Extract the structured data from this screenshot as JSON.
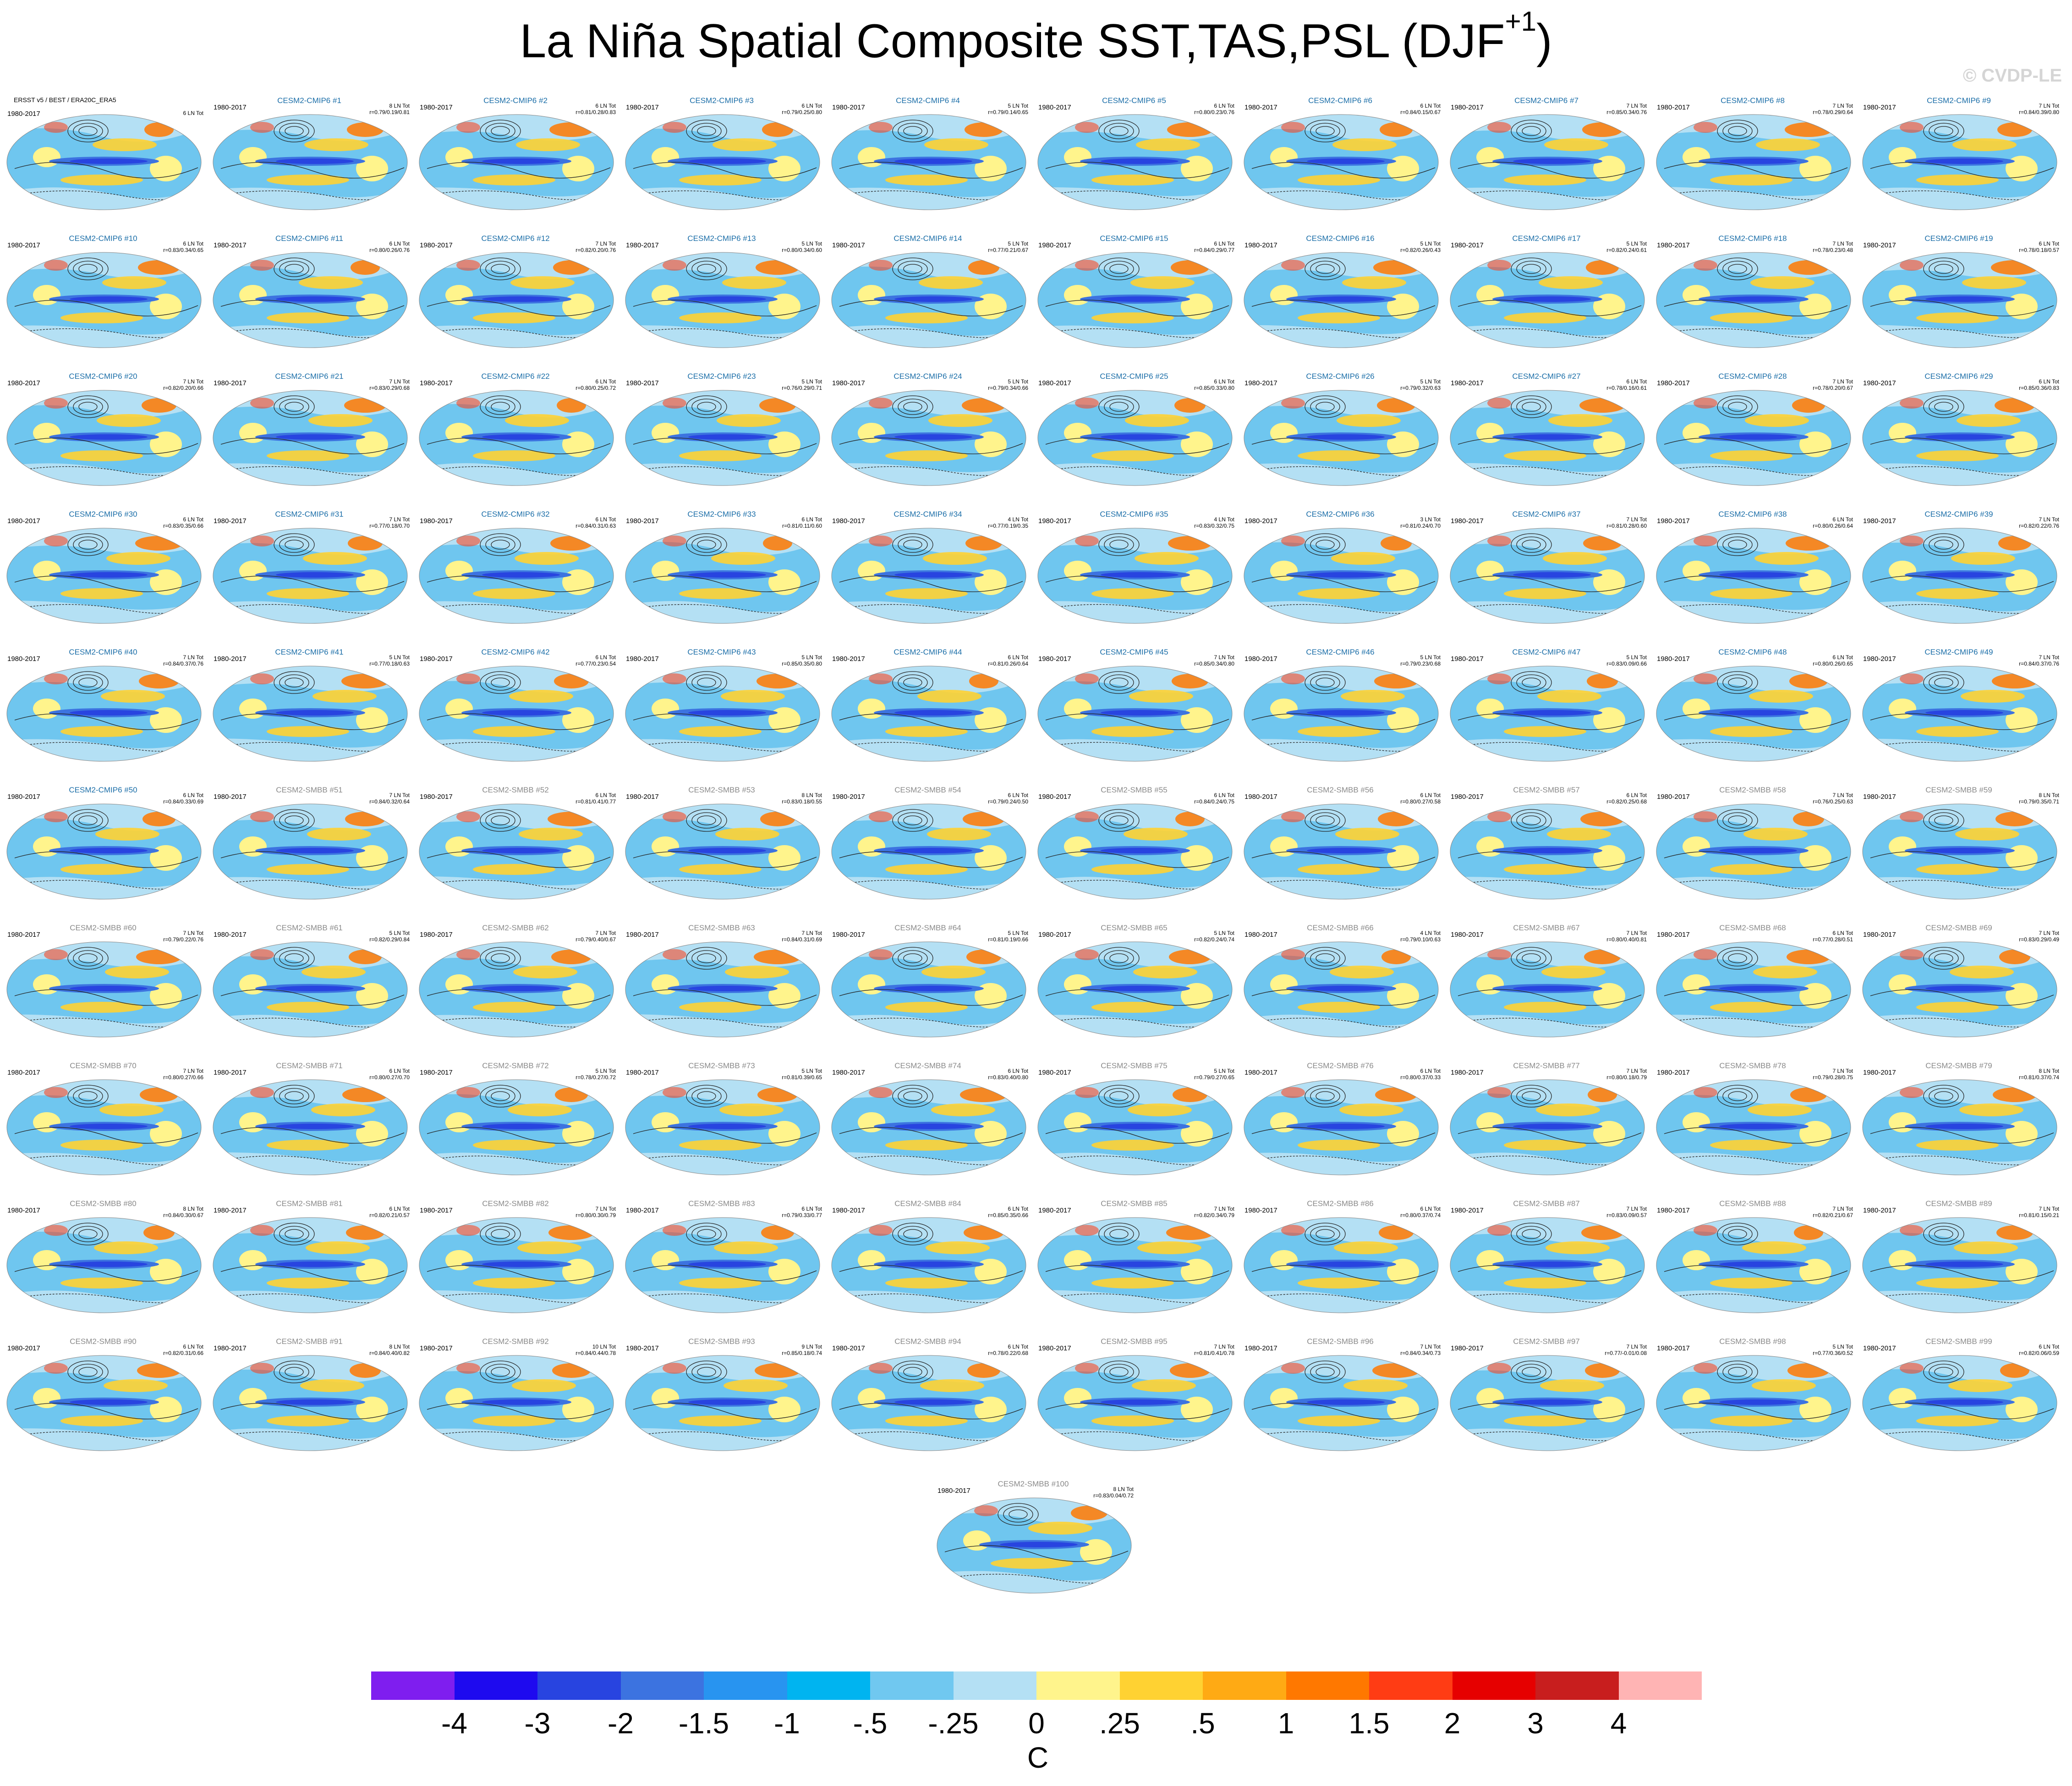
{
  "title": {
    "main": "La Niña Spatial Composite SST,TAS,PSL (DJF",
    "superscript": "+1",
    "close": ")"
  },
  "watermark": "© CVDP-LE",
  "panels": [
    {
      "model": "ERSST v5 / BEST / ERA20C_ERA5",
      "period": "1980-2017",
      "stat1": "6 LN Tot",
      "stat2": ""
    },
    {
      "model": "CESM2-CMIP6 #1",
      "period": "1980-2017",
      "stat1": "8 LN Tot",
      "stat2": "r=0.79/0.19/0.81"
    },
    {
      "model": "CESM2-CMIP6 #2",
      "period": "1980-2017",
      "stat1": "6 LN Tot",
      "stat2": "r=0.81/0.28/0.83"
    },
    {
      "model": "CESM2-CMIP6 #3",
      "period": "1980-2017",
      "stat1": "6 LN Tot",
      "stat2": "r=0.79/0.25/0.80"
    },
    {
      "model": "CESM2-CMIP6 #4",
      "period": "1980-2017",
      "stat1": "5 LN Tot",
      "stat2": "r=0.79/0.14/0.65"
    },
    {
      "model": "CESM2-CMIP6 #5",
      "period": "1980-2017",
      "stat1": "6 LN Tot",
      "stat2": "r=0.80/0.23/0.76"
    },
    {
      "model": "CESM2-CMIP6 #6",
      "period": "1980-2017",
      "stat1": "6 LN Tot",
      "stat2": "r=0.84/0.15/0.67"
    },
    {
      "model": "CESM2-CMIP6 #7",
      "period": "1980-2017",
      "stat1": "7 LN Tot",
      "stat2": "r=0.85/0.34/0.76"
    },
    {
      "model": "CESM2-CMIP6 #8",
      "period": "1980-2017",
      "stat1": "7 LN Tot",
      "stat2": "r=0.78/0.29/0.64"
    },
    {
      "model": "CESM2-CMIP6 #9",
      "period": "1980-2017",
      "stat1": "7 LN Tot",
      "stat2": "r=0.84/0.39/0.80"
    },
    {
      "model": "CESM2-CMIP6 #10",
      "period": "1980-2017",
      "stat1": "6 LN Tot",
      "stat2": "r=0.83/0.34/0.65"
    },
    {
      "model": "CESM2-CMIP6 #11",
      "period": "1980-2017",
      "stat1": "6 LN Tot",
      "stat2": "r=0.80/0.26/0.76"
    },
    {
      "model": "CESM2-CMIP6 #12",
      "period": "1980-2017",
      "stat1": "7 LN Tot",
      "stat2": "r=0.82/0.20/0.76"
    },
    {
      "model": "CESM2-CMIP6 #13",
      "period": "1980-2017",
      "stat1": "5 LN Tot",
      "stat2": "r=0.80/0.34/0.60"
    },
    {
      "model": "CESM2-CMIP6 #14",
      "period": "1980-2017",
      "stat1": "5 LN Tot",
      "stat2": "r=0.77/0.21/0.67"
    },
    {
      "model": "CESM2-CMIP6 #15",
      "period": "1980-2017",
      "stat1": "6 LN Tot",
      "stat2": "r=0.84/0.29/0.77"
    },
    {
      "model": "CESM2-CMIP6 #16",
      "period": "1980-2017",
      "stat1": "5 LN Tot",
      "stat2": "r=0.82/0.26/0.43"
    },
    {
      "model": "CESM2-CMIP6 #17",
      "period": "1980-2017",
      "stat1": "5 LN Tot",
      "stat2": "r=0.82/0.24/0.61"
    },
    {
      "model": "CESM2-CMIP6 #18",
      "period": "1980-2017",
      "stat1": "7 LN Tot",
      "stat2": "r=0.78/0.23/0.48"
    },
    {
      "model": "CESM2-CMIP6 #19",
      "period": "1980-2017",
      "stat1": "6 LN Tot",
      "stat2": "r=0.78/0.18/0.57"
    },
    {
      "model": "CESM2-CMIP6 #20",
      "period": "1980-2017",
      "stat1": "7 LN Tot",
      "stat2": "r=0.82/0.20/0.66"
    },
    {
      "model": "CESM2-CMIP6 #21",
      "period": "1980-2017",
      "stat1": "7 LN Tot",
      "stat2": "r=0.83/0.29/0.68"
    },
    {
      "model": "CESM2-CMIP6 #22",
      "period": "1980-2017",
      "stat1": "6 LN Tot",
      "stat2": "r=0.80/0.25/0.72"
    },
    {
      "model": "CESM2-CMIP6 #23",
      "period": "1980-2017",
      "stat1": "5 LN Tot",
      "stat2": "r=0.76/0.29/0.71"
    },
    {
      "model": "CESM2-CMIP6 #24",
      "period": "1980-2017",
      "stat1": "5 LN Tot",
      "stat2": "r=0.79/0.34/0.66"
    },
    {
      "model": "CESM2-CMIP6 #25",
      "period": "1980-2017",
      "stat1": "6 LN Tot",
      "stat2": "r=0.85/0.33/0.80"
    },
    {
      "model": "CESM2-CMIP6 #26",
      "period": "1980-2017",
      "stat1": "5 LN Tot",
      "stat2": "r=0.79/0.32/0.63"
    },
    {
      "model": "CESM2-CMIP6 #27",
      "period": "1980-2017",
      "stat1": "6 LN Tot",
      "stat2": "r=0.78/0.16/0.61"
    },
    {
      "model": "CESM2-CMIP6 #28",
      "period": "1980-2017",
      "stat1": "7 LN Tot",
      "stat2": "r=0.78/0.20/0.67"
    },
    {
      "model": "CESM2-CMIP6 #29",
      "period": "1980-2017",
      "stat1": "6 LN Tot",
      "stat2": "r=0.85/0.36/0.83"
    },
    {
      "model": "CESM2-CMIP6 #30",
      "period": "1980-2017",
      "stat1": "6 LN Tot",
      "stat2": "r=0.83/0.35/0.66"
    },
    {
      "model": "CESM2-CMIP6 #31",
      "period": "1980-2017",
      "stat1": "7 LN Tot",
      "stat2": "r=0.77/0.18/0.70"
    },
    {
      "model": "CESM2-CMIP6 #32",
      "period": "1980-2017",
      "stat1": "6 LN Tot",
      "stat2": "r=0.84/0.31/0.63"
    },
    {
      "model": "CESM2-CMIP6 #33",
      "period": "1980-2017",
      "stat1": "6 LN Tot",
      "stat2": "r=0.81/0.11/0.60"
    },
    {
      "model": "CESM2-CMIP6 #34",
      "period": "1980-2017",
      "stat1": "4 LN Tot",
      "stat2": "r=0.77/0.19/0.35"
    },
    {
      "model": "CESM2-CMIP6 #35",
      "period": "1980-2017",
      "stat1": "4 LN Tot",
      "stat2": "r=0.83/0.32/0.75"
    },
    {
      "model": "CESM2-CMIP6 #36",
      "period": "1980-2017",
      "stat1": "3 LN Tot",
      "stat2": "r=0.81/0.24/0.70"
    },
    {
      "model": "CESM2-CMIP6 #37",
      "period": "1980-2017",
      "stat1": "7 LN Tot",
      "stat2": "r=0.81/0.28/0.60"
    },
    {
      "model": "CESM2-CMIP6 #38",
      "period": "1980-2017",
      "stat1": "6 LN Tot",
      "stat2": "r=0.80/0.26/0.64"
    },
    {
      "model": "CESM2-CMIP6 #39",
      "period": "1980-2017",
      "stat1": "7 LN Tot",
      "stat2": "r=0.82/0.22/0.76"
    },
    {
      "model": "CESM2-CMIP6 #40",
      "period": "1980-2017",
      "stat1": "7 LN Tot",
      "stat2": "r=0.84/0.37/0.76"
    },
    {
      "model": "CESM2-CMIP6 #41",
      "period": "1980-2017",
      "stat1": "5 LN Tot",
      "stat2": "r=0.77/0.18/0.63"
    },
    {
      "model": "CESM2-CMIP6 #42",
      "period": "1980-2017",
      "stat1": "6 LN Tot",
      "stat2": "r=0.77/0.23/0.54"
    },
    {
      "model": "CESM2-CMIP6 #43",
      "period": "1980-2017",
      "stat1": "5 LN Tot",
      "stat2": "r=0.85/0.35/0.80"
    },
    {
      "model": "CESM2-CMIP6 #44",
      "period": "1980-2017",
      "stat1": "6 LN Tot",
      "stat2": "r=0.81/0.26/0.64"
    },
    {
      "model": "CESM2-CMIP6 #45",
      "period": "1980-2017",
      "stat1": "7 LN Tot",
      "stat2": "r=0.85/0.34/0.80"
    },
    {
      "model": "CESM2-CMIP6 #46",
      "period": "1980-2017",
      "stat1": "5 LN Tot",
      "stat2": "r=0.79/0.23/0.68"
    },
    {
      "model": "CESM2-CMIP6 #47",
      "period": "1980-2017",
      "stat1": "5 LN Tot",
      "stat2": "r=0.83/0.09/0.66"
    },
    {
      "model": "CESM2-CMIP6 #48",
      "period": "1980-2017",
      "stat1": "6 LN Tot",
      "stat2": "r=0.80/0.26/0.65"
    },
    {
      "model": "CESM2-CMIP6 #49",
      "period": "1980-2017",
      "stat1": "7 LN Tot",
      "stat2": "r=0.84/0.37/0.76"
    },
    {
      "model": "CESM2-CMIP6 #50",
      "period": "1980-2017",
      "stat1": "6 LN Tot",
      "stat2": "r=0.84/0.33/0.69"
    },
    {
      "model": "CESM2-SMBB #51",
      "period": "1980-2017",
      "stat1": "7 LN Tot",
      "stat2": "r=0.84/0.32/0.64"
    },
    {
      "model": "CESM2-SMBB #52",
      "period": "1980-2017",
      "stat1": "6 LN Tot",
      "stat2": "r=0.81/0.41/0.77"
    },
    {
      "model": "CESM2-SMBB #53",
      "period": "1980-2017",
      "stat1": "8 LN Tot",
      "stat2": "r=0.83/0.18/0.55"
    },
    {
      "model": "CESM2-SMBB #54",
      "period": "1980-2017",
      "stat1": "6 LN Tot",
      "stat2": "r=0.79/0.24/0.50"
    },
    {
      "model": "CESM2-SMBB #55",
      "period": "1980-2017",
      "stat1": "6 LN Tot",
      "stat2": "r=0.84/0.24/0.75"
    },
    {
      "model": "CESM2-SMBB #56",
      "period": "1980-2017",
      "stat1": "6 LN Tot",
      "stat2": "r=0.80/0.27/0.58"
    },
    {
      "model": "CESM2-SMBB #57",
      "period": "1980-2017",
      "stat1": "6 LN Tot",
      "stat2": "r=0.82/0.25/0.68"
    },
    {
      "model": "CESM2-SMBB #58",
      "period": "1980-2017",
      "stat1": "7 LN Tot",
      "stat2": "r=0.76/0.25/0.63"
    },
    {
      "model": "CESM2-SMBB #59",
      "period": "1980-2017",
      "stat1": "8 LN Tot",
      "stat2": "r=0.79/0.35/0.71"
    },
    {
      "model": "CESM2-SMBB #60",
      "period": "1980-2017",
      "stat1": "7 LN Tot",
      "stat2": "r=0.79/0.22/0.76"
    },
    {
      "model": "CESM2-SMBB #61",
      "period": "1980-2017",
      "stat1": "5 LN Tot",
      "stat2": "r=0.82/0.29/0.84"
    },
    {
      "model": "CESM2-SMBB #62",
      "period": "1980-2017",
      "stat1": "7 LN Tot",
      "stat2": "r=0.79/0.40/0.67"
    },
    {
      "model": "CESM2-SMBB #63",
      "period": "1980-2017",
      "stat1": "7 LN Tot",
      "stat2": "r=0.84/0.31/0.69"
    },
    {
      "model": "CESM2-SMBB #64",
      "period": "1980-2017",
      "stat1": "5 LN Tot",
      "stat2": "r=0.81/0.19/0.66"
    },
    {
      "model": "CESM2-SMBB #65",
      "period": "1980-2017",
      "stat1": "5 LN Tot",
      "stat2": "r=0.82/0.24/0.74"
    },
    {
      "model": "CESM2-SMBB #66",
      "period": "1980-2017",
      "stat1": "4 LN Tot",
      "stat2": "r=0.79/0.10/0.63"
    },
    {
      "model": "CESM2-SMBB #67",
      "period": "1980-2017",
      "stat1": "7 LN Tot",
      "stat2": "r=0.80/0.40/0.81"
    },
    {
      "model": "CESM2-SMBB #68",
      "period": "1980-2017",
      "stat1": "6 LN Tot",
      "stat2": "r=0.77/0.28/0.51"
    },
    {
      "model": "CESM2-SMBB #69",
      "period": "1980-2017",
      "stat1": "7 LN Tot",
      "stat2": "r=0.83/0.29/0.49"
    },
    {
      "model": "CESM2-SMBB #70",
      "period": "1980-2017",
      "stat1": "7 LN Tot",
      "stat2": "r=0.80/0.27/0.66"
    },
    {
      "model": "CESM2-SMBB #71",
      "period": "1980-2017",
      "stat1": "6 LN Tot",
      "stat2": "r=0.80/0.27/0.70"
    },
    {
      "model": "CESM2-SMBB #72",
      "period": "1980-2017",
      "stat1": "5 LN Tot",
      "stat2": "r=0.78/0.27/0.72"
    },
    {
      "model": "CESM2-SMBB #73",
      "period": "1980-2017",
      "stat1": "5 LN Tot",
      "stat2": "r=0.81/0.39/0.65"
    },
    {
      "model": "CESM2-SMBB #74",
      "period": "1980-2017",
      "stat1": "6 LN Tot",
      "stat2": "r=0.83/0.40/0.80"
    },
    {
      "model": "CESM2-SMBB #75",
      "period": "1980-2017",
      "stat1": "5 LN Tot",
      "stat2": "r=0.79/0.27/0.65"
    },
    {
      "model": "CESM2-SMBB #76",
      "period": "1980-2017",
      "stat1": "6 LN Tot",
      "stat2": "r=0.80/0.37/0.33"
    },
    {
      "model": "CESM2-SMBB #77",
      "period": "1980-2017",
      "stat1": "7 LN Tot",
      "stat2": "r=0.80/0.18/0.79"
    },
    {
      "model": "CESM2-SMBB #78",
      "period": "1980-2017",
      "stat1": "7 LN Tot",
      "stat2": "r=0.79/0.28/0.75"
    },
    {
      "model": "CESM2-SMBB #79",
      "period": "1980-2017",
      "stat1": "8 LN Tot",
      "stat2": "r=0.81/0.37/0.74"
    },
    {
      "model": "CESM2-SMBB #80",
      "period": "1980-2017",
      "stat1": "8 LN Tot",
      "stat2": "r=0.84/0.30/0.67"
    },
    {
      "model": "CESM2-SMBB #81",
      "period": "1980-2017",
      "stat1": "6 LN Tot",
      "stat2": "r=0.82/0.21/0.57"
    },
    {
      "model": "CESM2-SMBB #82",
      "period": "1980-2017",
      "stat1": "7 LN Tot",
      "stat2": "r=0.80/0.30/0.79"
    },
    {
      "model": "CESM2-SMBB #83",
      "period": "1980-2017",
      "stat1": "6 LN Tot",
      "stat2": "r=0.79/0.33/0.77"
    },
    {
      "model": "CESM2-SMBB #84",
      "period": "1980-2017",
      "stat1": "6 LN Tot",
      "stat2": "r=0.85/0.35/0.66"
    },
    {
      "model": "CESM2-SMBB #85",
      "period": "1980-2017",
      "stat1": "7 LN Tot",
      "stat2": "r=0.82/0.34/0.79"
    },
    {
      "model": "CESM2-SMBB #86",
      "period": "1980-2017",
      "stat1": "6 LN Tot",
      "stat2": "r=0.80/0.37/0.74"
    },
    {
      "model": "CESM2-SMBB #87",
      "period": "1980-2017",
      "stat1": "7 LN Tot",
      "stat2": "r=0.83/0.09/0.57"
    },
    {
      "model": "CESM2-SMBB #88",
      "period": "1980-2017",
      "stat1": "7 LN Tot",
      "stat2": "r=0.82/0.21/0.67"
    },
    {
      "model": "CESM2-SMBB #89",
      "period": "1980-2017",
      "stat1": "7 LN Tot",
      "stat2": "r=0.81/0.15/0.21"
    },
    {
      "model": "CESM2-SMBB #90",
      "period": "1980-2017",
      "stat1": "6 LN Tot",
      "stat2": "r=0.82/0.31/0.66"
    },
    {
      "model": "CESM2-SMBB #91",
      "period": "1980-2017",
      "stat1": "8 LN Tot",
      "stat2": "r=0.84/0.40/0.82"
    },
    {
      "model": "CESM2-SMBB #92",
      "period": "1980-2017",
      "stat1": "10 LN Tot",
      "stat2": "r=0.84/0.44/0.78"
    },
    {
      "model": "CESM2-SMBB #93",
      "period": "1980-2017",
      "stat1": "9 LN Tot",
      "stat2": "r=0.85/0.18/0.74"
    },
    {
      "model": "CESM2-SMBB #94",
      "period": "1980-2017",
      "stat1": "6 LN Tot",
      "stat2": "r=0.78/0.22/0.68"
    },
    {
      "model": "CESM2-SMBB #95",
      "period": "1980-2017",
      "stat1": "7 LN Tot",
      "stat2": "r=0.81/0.41/0.78"
    },
    {
      "model": "CESM2-SMBB #96",
      "period": "1980-2017",
      "stat1": "7 LN Tot",
      "stat2": "r=0.84/0.34/0.73"
    },
    {
      "model": "CESM2-SMBB #97",
      "period": "1980-2017",
      "stat1": "7 LN Tot",
      "stat2": "r=0.77/-0.01/0.08"
    },
    {
      "model": "CESM2-SMBB #98",
      "period": "1980-2017",
      "stat1": "5 LN Tot",
      "stat2": "r=0.77/0.36/0.52"
    },
    {
      "model": "CESM2-SMBB #99",
      "period": "1980-2017",
      "stat1": "6 LN Tot",
      "stat2": "r=0.82/0.06/0.59"
    },
    {
      "model": "CESM2-SMBB #100",
      "period": "1980-2017",
      "stat1": "8 LN Tot",
      "stat2": "r=0.83/0.04/0.72"
    }
  ],
  "colorbar": {
    "unit": "C",
    "colors": [
      "#7f1eef",
      "#1e0aef",
      "#2844e0",
      "#3c73e0",
      "#2894f0",
      "#00b4f0",
      "#70c8f0",
      "#b4e0f4",
      "#fff48c",
      "#ffd232",
      "#ffaa14",
      "#ff7800",
      "#ff3c14",
      "#e60000",
      "#c81e1e",
      "#ffb4b4"
    ],
    "ticks": [
      "-4",
      "-3",
      "-2",
      "-1.5",
      "-1",
      "-.5",
      "-.25",
      "0",
      ".25",
      ".5",
      "1",
      "1.5",
      "2",
      "3",
      "4"
    ]
  }
}
